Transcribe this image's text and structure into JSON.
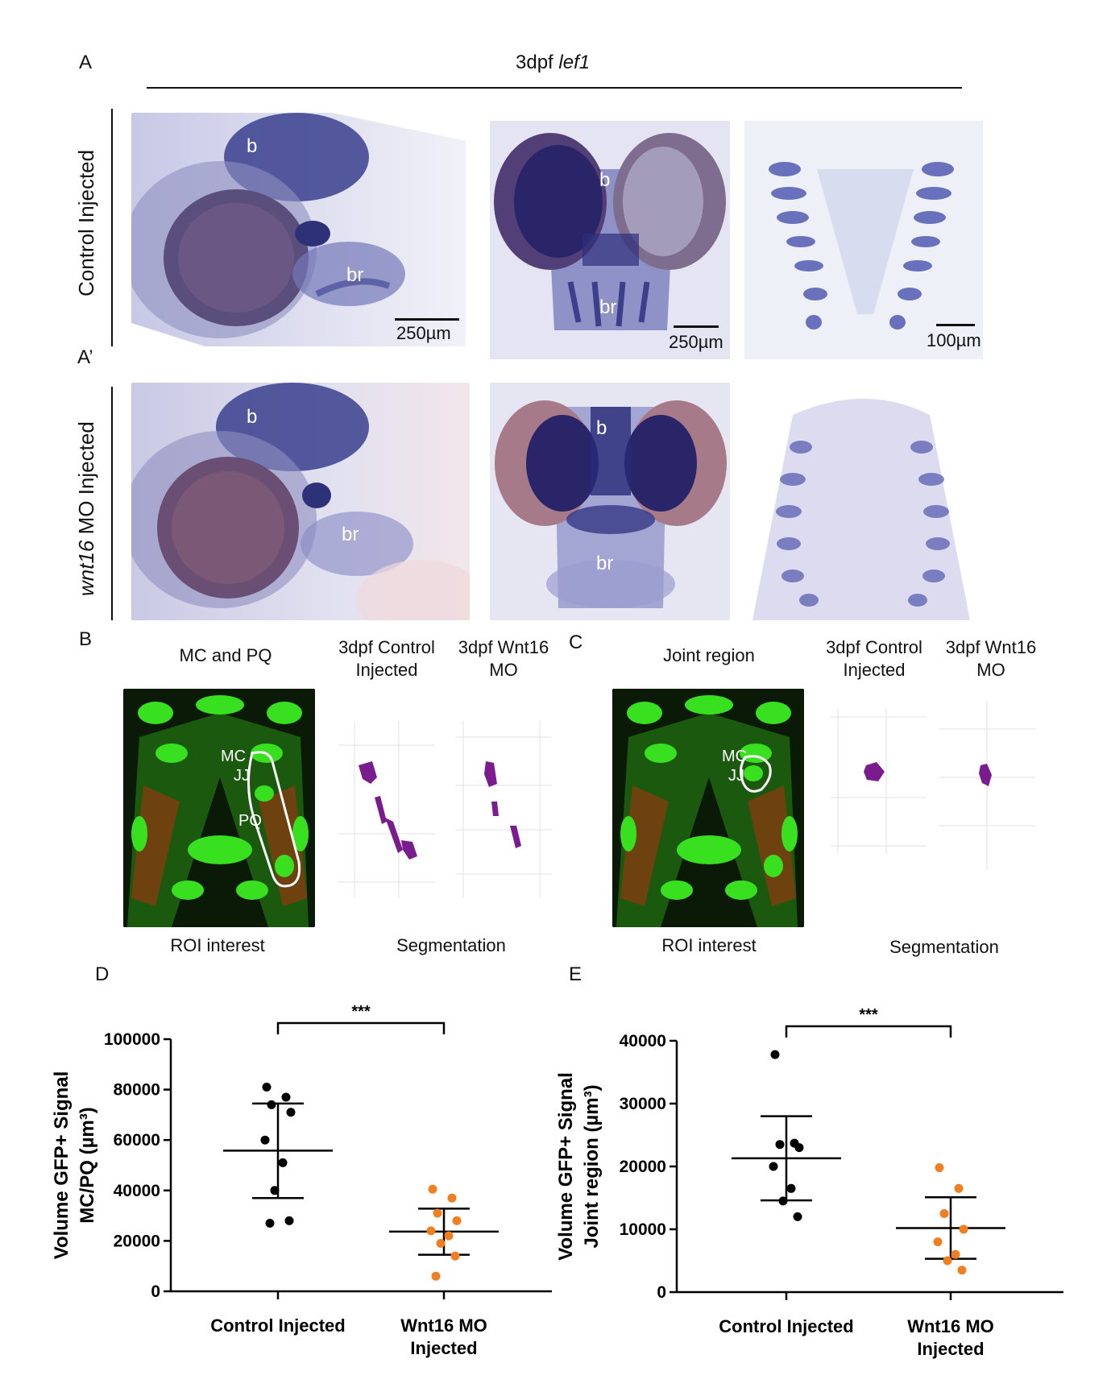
{
  "panel_A": {
    "letter": "A",
    "title_main": "3dpf ",
    "title_gene": "lef1",
    "row1_label": "Control Injected",
    "letter_prime": "A’",
    "row2_label_gene": "wnt16",
    "row2_label_rest": " MO Injected",
    "lbl_b": "b",
    "lbl_br": "br",
    "scale_250": "250µm",
    "scale_100": "100µm"
  },
  "panel_B": {
    "letter": "B",
    "roi_title": "MC and PQ",
    "lbl_mc": "MC",
    "lbl_jj": "JJ",
    "lbl_pq": "PQ",
    "col1_line1": "3dpf Control",
    "col1_line2": "Injected",
    "col2_line1": "3dpf Wnt16",
    "col2_line2": "MO",
    "roi_caption": "ROI interest",
    "seg_caption": "Segmentation"
  },
  "panel_C": {
    "letter": "C",
    "roi_title": "Joint region",
    "lbl_mc": "MC",
    "lbl_jj": "JJ",
    "col1_line1": "3dpf Control",
    "col1_line2": "Injected",
    "col2_line1": "3dpf Wnt16",
    "col2_line2": "MO",
    "roi_caption": "ROI interest",
    "seg_caption": "Segmentation"
  },
  "chart_data": [
    {
      "panel": "D",
      "type": "scatter",
      "ylabel_line1": "Volume GFP+ Signal",
      "ylabel_line2": "MC/PQ (µm³)",
      "ylim": [
        0,
        100000
      ],
      "yticks": [
        "0",
        "20000",
        "40000",
        "60000",
        "80000",
        "100000"
      ],
      "yticks_values": [
        0,
        20000,
        40000,
        60000,
        80000,
        100000
      ],
      "categories": [
        "Control Injected",
        "Wnt16 MO Injected"
      ],
      "category_lines": [
        [
          "Control Injected"
        ],
        [
          "Wnt16 MO",
          "Injected"
        ]
      ],
      "significance": "***",
      "colors": [
        "#000000",
        "#f07f22"
      ],
      "groups": [
        {
          "name": "Control Injected",
          "points": [
            81000,
            77000,
            74000,
            71000,
            60000,
            51000,
            40000,
            28000,
            27000
          ],
          "mean": 55800,
          "sd_low": 37000,
          "sd_high": 74500
        },
        {
          "name": "Wnt16 MO Injected",
          "points": [
            40500,
            37000,
            31000,
            28000,
            24000,
            22000,
            19000,
            14000,
            6000
          ],
          "mean": 23700,
          "sd_low": 14500,
          "sd_high": 32800
        }
      ]
    },
    {
      "panel": "E",
      "type": "scatter",
      "ylabel_line1": "Volume GFP+ Signal",
      "ylabel_line2": "Joint region (µm³)",
      "ylim": [
        0,
        40000
      ],
      "yticks": [
        "0",
        "10000",
        "20000",
        "30000",
        "40000"
      ],
      "yticks_values": [
        0,
        10000,
        20000,
        30000,
        40000
      ],
      "categories": [
        "Control Injected",
        "Wnt16 MO Injected"
      ],
      "category_lines": [
        [
          "Control Injected"
        ],
        [
          "Wnt16 MO",
          "Injected"
        ]
      ],
      "significance": "***",
      "colors": [
        "#000000",
        "#f07f22"
      ],
      "groups": [
        {
          "name": "Control Injected",
          "points": [
            37800,
            23700,
            23500,
            23000,
            20000,
            16500,
            14500,
            12000
          ],
          "mean": 21300,
          "sd_low": 14600,
          "sd_high": 28000
        },
        {
          "name": "Wnt16 MO Injected",
          "points": [
            19800,
            16500,
            12500,
            10000,
            8000,
            6000,
            5000,
            3500
          ],
          "mean": 10200,
          "sd_low": 5300,
          "sd_high": 15100
        }
      ]
    }
  ]
}
